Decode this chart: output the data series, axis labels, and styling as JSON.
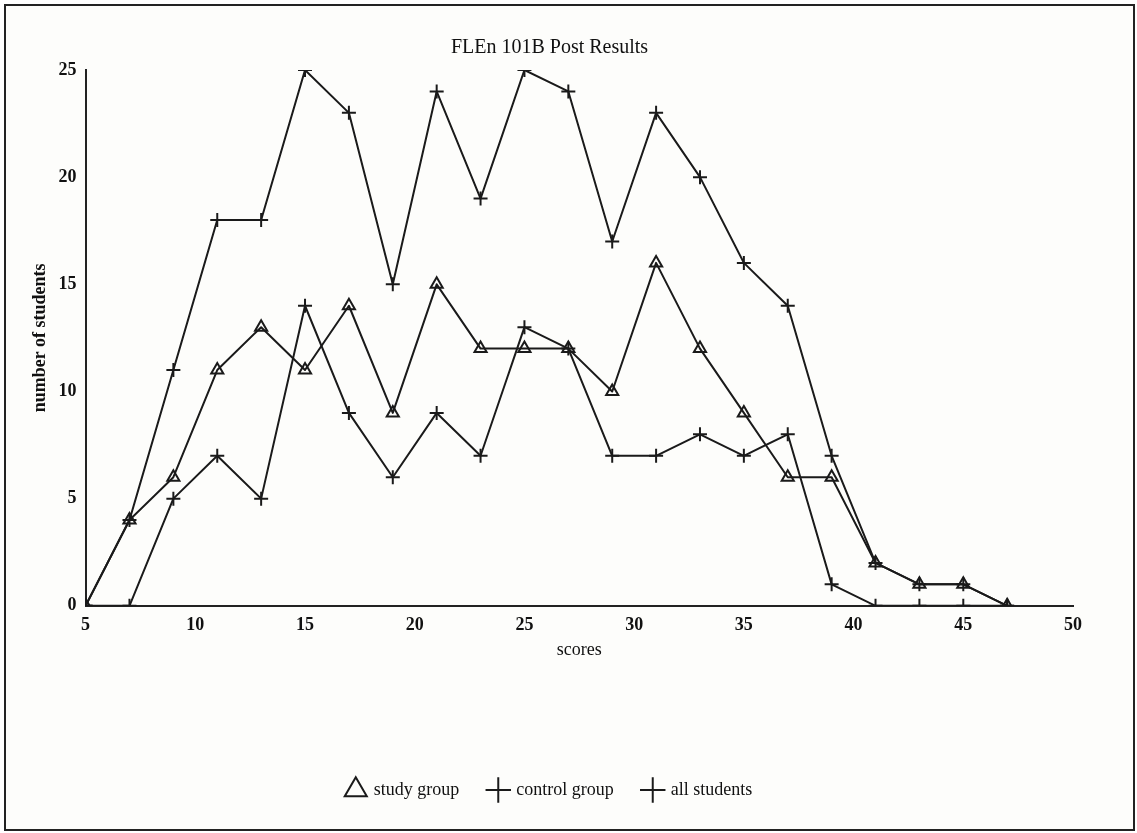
{
  "chart_data": {
    "type": "line",
    "title": "FLEn 101B Post Results",
    "xlabel": "scores",
    "ylabel": "number of students",
    "x": [
      5,
      7,
      9,
      11,
      13,
      15,
      17,
      19,
      21,
      23,
      25,
      27,
      29,
      31,
      33,
      35,
      37,
      39,
      41,
      43,
      45,
      47
    ],
    "xlim": [
      5,
      50
    ],
    "xticks": [
      5,
      10,
      15,
      20,
      25,
      30,
      35,
      40,
      45,
      50
    ],
    "ylim": [
      0,
      25
    ],
    "yticks": [
      0,
      5,
      10,
      15,
      20,
      25
    ],
    "grid": false,
    "legend": "bottom",
    "line_style": "solid",
    "series": [
      {
        "name": "study group",
        "color": "#1a1a1a",
        "marker": "triangle",
        "values": [
          0,
          4,
          6,
          11,
          13,
          11,
          14,
          9,
          15,
          12,
          12,
          12,
          10,
          16,
          12,
          9,
          6,
          6,
          2,
          1,
          1,
          0
        ]
      },
      {
        "name": "control group",
        "color": "#1a1a1a",
        "marker": "cross",
        "values": [
          0,
          0,
          5,
          7,
          5,
          14,
          9,
          6,
          9,
          7,
          13,
          12,
          7,
          7,
          8,
          7,
          8,
          1,
          0,
          0,
          0,
          0
        ]
      },
      {
        "name": "all students",
        "color": "#1a1a1a",
        "marker": "cross",
        "values": [
          0,
          4,
          11,
          18,
          18,
          25,
          23,
          15,
          24,
          19,
          25,
          24,
          17,
          23,
          20,
          16,
          14,
          7,
          2,
          1,
          1,
          0
        ]
      }
    ]
  }
}
